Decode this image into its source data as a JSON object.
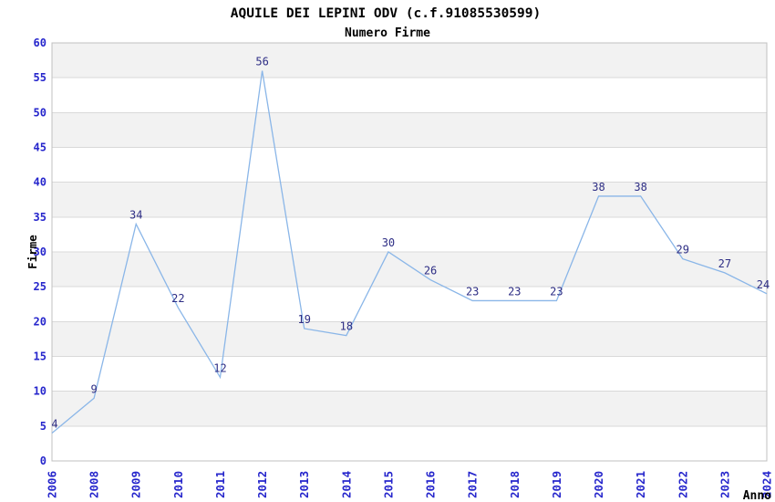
{
  "chart_data": {
    "type": "line",
    "title": "AQUILE DEI LEPINI ODV (c.f.91085530599)",
    "subtitle": "Numero Firme",
    "xlabel": "Anno",
    "ylabel": "Firme",
    "categories": [
      "2006",
      "2008",
      "2009",
      "2010",
      "2011",
      "2012",
      "2013",
      "2014",
      "2015",
      "2016",
      "2017",
      "2018",
      "2019",
      "2020",
      "2021",
      "2022",
      "2023",
      "2024"
    ],
    "values": [
      4,
      9,
      34,
      22,
      12,
      56,
      19,
      18,
      30,
      26,
      23,
      23,
      23,
      38,
      38,
      29,
      27,
      24
    ],
    "ylim": [
      0,
      60
    ],
    "ytick_step": 5,
    "grid": "horizontal-alternating-bands",
    "legend": "none",
    "data_labels": true,
    "colors": {
      "line": "#8ab6e8",
      "tick_label": "#2626cc",
      "data_label": "#2e2e85",
      "band": "#f2f2f2",
      "gridline": "#d9d9d9",
      "plot_border": "#c0c0c0",
      "title": "#333333",
      "subtitle": "#4f4f4f",
      "axis_label": "#3a3a3a",
      "background": "#ffffff"
    }
  }
}
